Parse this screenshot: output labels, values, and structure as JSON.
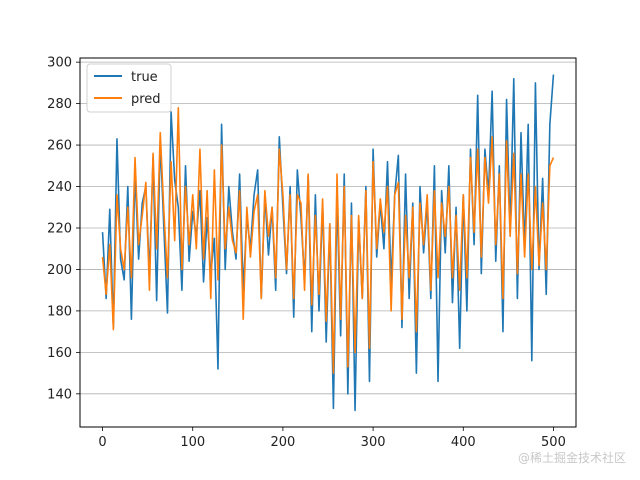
{
  "chart_data": {
    "type": "line",
    "title": "",
    "xlabel": "",
    "ylabel": "",
    "xlim": [
      -25,
      525
    ],
    "ylim": [
      124,
      302
    ],
    "x_ticks": [
      0,
      100,
      200,
      300,
      400,
      500
    ],
    "y_ticks": [
      140,
      160,
      180,
      200,
      220,
      240,
      260,
      280,
      300
    ],
    "grid": "horizontal",
    "legend_position": "top-left",
    "series": [
      {
        "name": "true",
        "color": "#1f77b4",
        "x": [
          0,
          4,
          8,
          12,
          16,
          20,
          24,
          28,
          32,
          36,
          40,
          44,
          48,
          52,
          56,
          60,
          64,
          68,
          72,
          76,
          80,
          84,
          88,
          92,
          96,
          100,
          104,
          108,
          112,
          116,
          120,
          124,
          128,
          132,
          136,
          140,
          144,
          148,
          152,
          156,
          160,
          164,
          168,
          172,
          176,
          180,
          184,
          188,
          192,
          196,
          200,
          204,
          208,
          212,
          216,
          220,
          224,
          228,
          232,
          236,
          240,
          244,
          248,
          252,
          256,
          260,
          264,
          268,
          272,
          276,
          280,
          284,
          288,
          292,
          296,
          300,
          304,
          308,
          312,
          316,
          320,
          324,
          328,
          332,
          336,
          340,
          344,
          348,
          352,
          356,
          360,
          364,
          368,
          372,
          376,
          380,
          384,
          388,
          392,
          396,
          400,
          404,
          408,
          412,
          416,
          420,
          424,
          428,
          432,
          436,
          440,
          444,
          448,
          452,
          456,
          460,
          464,
          468,
          472,
          476,
          480,
          484,
          488,
          492,
          496,
          500
        ],
        "values": [
          218,
          186,
          229,
          172,
          263,
          205,
          195,
          240,
          176,
          247,
          205,
          232,
          240,
          198,
          254,
          185,
          262,
          220,
          179,
          276,
          243,
          230,
          190,
          250,
          204,
          228,
          216,
          238,
          194,
          225,
          198,
          215,
          152,
          270,
          200,
          240,
          218,
          205,
          246,
          190,
          225,
          210,
          236,
          248,
          186,
          236,
          207,
          230,
          190,
          264,
          230,
          198,
          240,
          177,
          248,
          225,
          195,
          245,
          170,
          236,
          180,
          232,
          165,
          222,
          133,
          236,
          168,
          246,
          140,
          232,
          132,
          224,
          186,
          240,
          146,
          258,
          206,
          232,
          210,
          252,
          193,
          236,
          255,
          172,
          246,
          186,
          232,
          150,
          240,
          208,
          232,
          186,
          250,
          146,
          238,
          208,
          250,
          184,
          230,
          162,
          236,
          180,
          258,
          212,
          284,
          198,
          258,
          236,
          286,
          204,
          250,
          170,
          282,
          218,
          292,
          186,
          266,
          210,
          270,
          156,
          290,
          200,
          244,
          188,
          270,
          294
        ],
        "values_note": "pattern read approximately from the plot"
      },
      {
        "name": "pred",
        "color": "#ff7f0e",
        "x": [
          0,
          4,
          8,
          12,
          16,
          20,
          24,
          28,
          32,
          36,
          40,
          44,
          48,
          52,
          56,
          60,
          64,
          68,
          72,
          76,
          80,
          84,
          88,
          92,
          96,
          100,
          104,
          108,
          112,
          116,
          120,
          124,
          128,
          132,
          136,
          140,
          144,
          148,
          152,
          156,
          160,
          164,
          168,
          172,
          176,
          180,
          184,
          188,
          192,
          196,
          200,
          204,
          208,
          212,
          216,
          220,
          224,
          228,
          232,
          236,
          240,
          244,
          248,
          252,
          256,
          260,
          264,
          268,
          272,
          276,
          280,
          284,
          288,
          292,
          296,
          300,
          304,
          308,
          312,
          316,
          320,
          324,
          328,
          332,
          336,
          340,
          344,
          348,
          352,
          356,
          360,
          364,
          368,
          372,
          376,
          380,
          384,
          388,
          392,
          396,
          400,
          404,
          408,
          412,
          416,
          420,
          424,
          428,
          432,
          436,
          440,
          444,
          448,
          452,
          456,
          460,
          464,
          468,
          472,
          476,
          480,
          484,
          488,
          492,
          496,
          500
        ],
        "values": [
          206,
          188,
          212,
          171,
          236,
          210,
          200,
          230,
          196,
          254,
          212,
          226,
          242,
          190,
          256,
          210,
          266,
          228,
          196,
          252,
          214,
          278,
          200,
          240,
          212,
          236,
          210,
          258,
          205,
          238,
          186,
          248,
          195,
          260,
          210,
          230,
          214,
          208,
          238,
          176,
          230,
          206,
          228,
          236,
          186,
          238,
          216,
          230,
          196,
          258,
          236,
          200,
          236,
          186,
          236,
          232,
          190,
          246,
          183,
          226,
          188,
          234,
          175,
          222,
          150,
          246,
          176,
          240,
          153,
          226,
          160,
          226,
          186,
          238,
          162,
          252,
          210,
          234,
          218,
          240,
          180,
          236,
          242,
          176,
          226,
          196,
          230,
          170,
          232,
          212,
          236,
          190,
          238,
          196,
          232,
          216,
          240,
          196,
          226,
          190,
          236,
          196,
          254,
          218,
          258,
          206,
          254,
          232,
          264,
          212,
          246,
          186,
          262,
          216,
          256,
          198,
          246,
          206,
          246,
          200,
          240,
          202,
          232,
          200,
          250,
          254
        ]
      }
    ]
  },
  "watermark": "@稀土掘金技术社区"
}
